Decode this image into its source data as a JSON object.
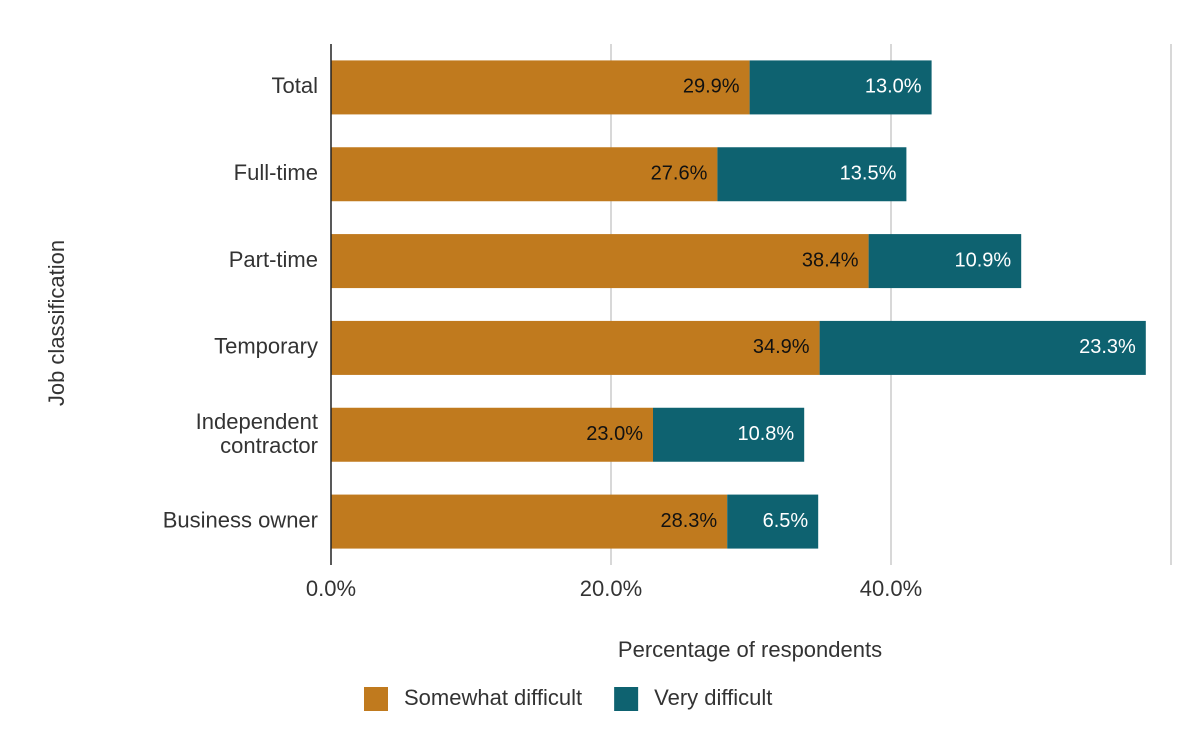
{
  "chart_data": {
    "type": "stacked-bar-horizontal",
    "categories": [
      "Total",
      "Full-time",
      "Part-time",
      "Temporary",
      "Independent contractor",
      "Business owner"
    ],
    "series": [
      {
        "name": "Somewhat difficult",
        "color": "#c07a1e",
        "values": [
          29.9,
          27.6,
          38.4,
          34.9,
          23.0,
          28.3
        ],
        "value_labels": [
          "29.9%",
          "27.6%",
          "38.4%",
          "34.9%",
          "23.0%",
          "28.3%"
        ]
      },
      {
        "name": "Very difficult",
        "color": "#0e6270",
        "values": [
          13.0,
          13.5,
          10.9,
          23.3,
          10.8,
          6.5
        ],
        "value_labels": [
          "13.0%",
          "13.5%",
          "10.9%",
          "23.3%",
          "10.8%",
          "6.5%"
        ]
      }
    ],
    "xlabel": "Percentage of respondents",
    "ylabel": "Job classification",
    "xlim": [
      0,
      60
    ],
    "xticks": [
      {
        "value": 0,
        "label": "0.0%"
      },
      {
        "value": 20,
        "label": "20.0%"
      },
      {
        "value": 40,
        "label": "40.0%"
      }
    ],
    "grid": true,
    "legend": "bottom"
  }
}
